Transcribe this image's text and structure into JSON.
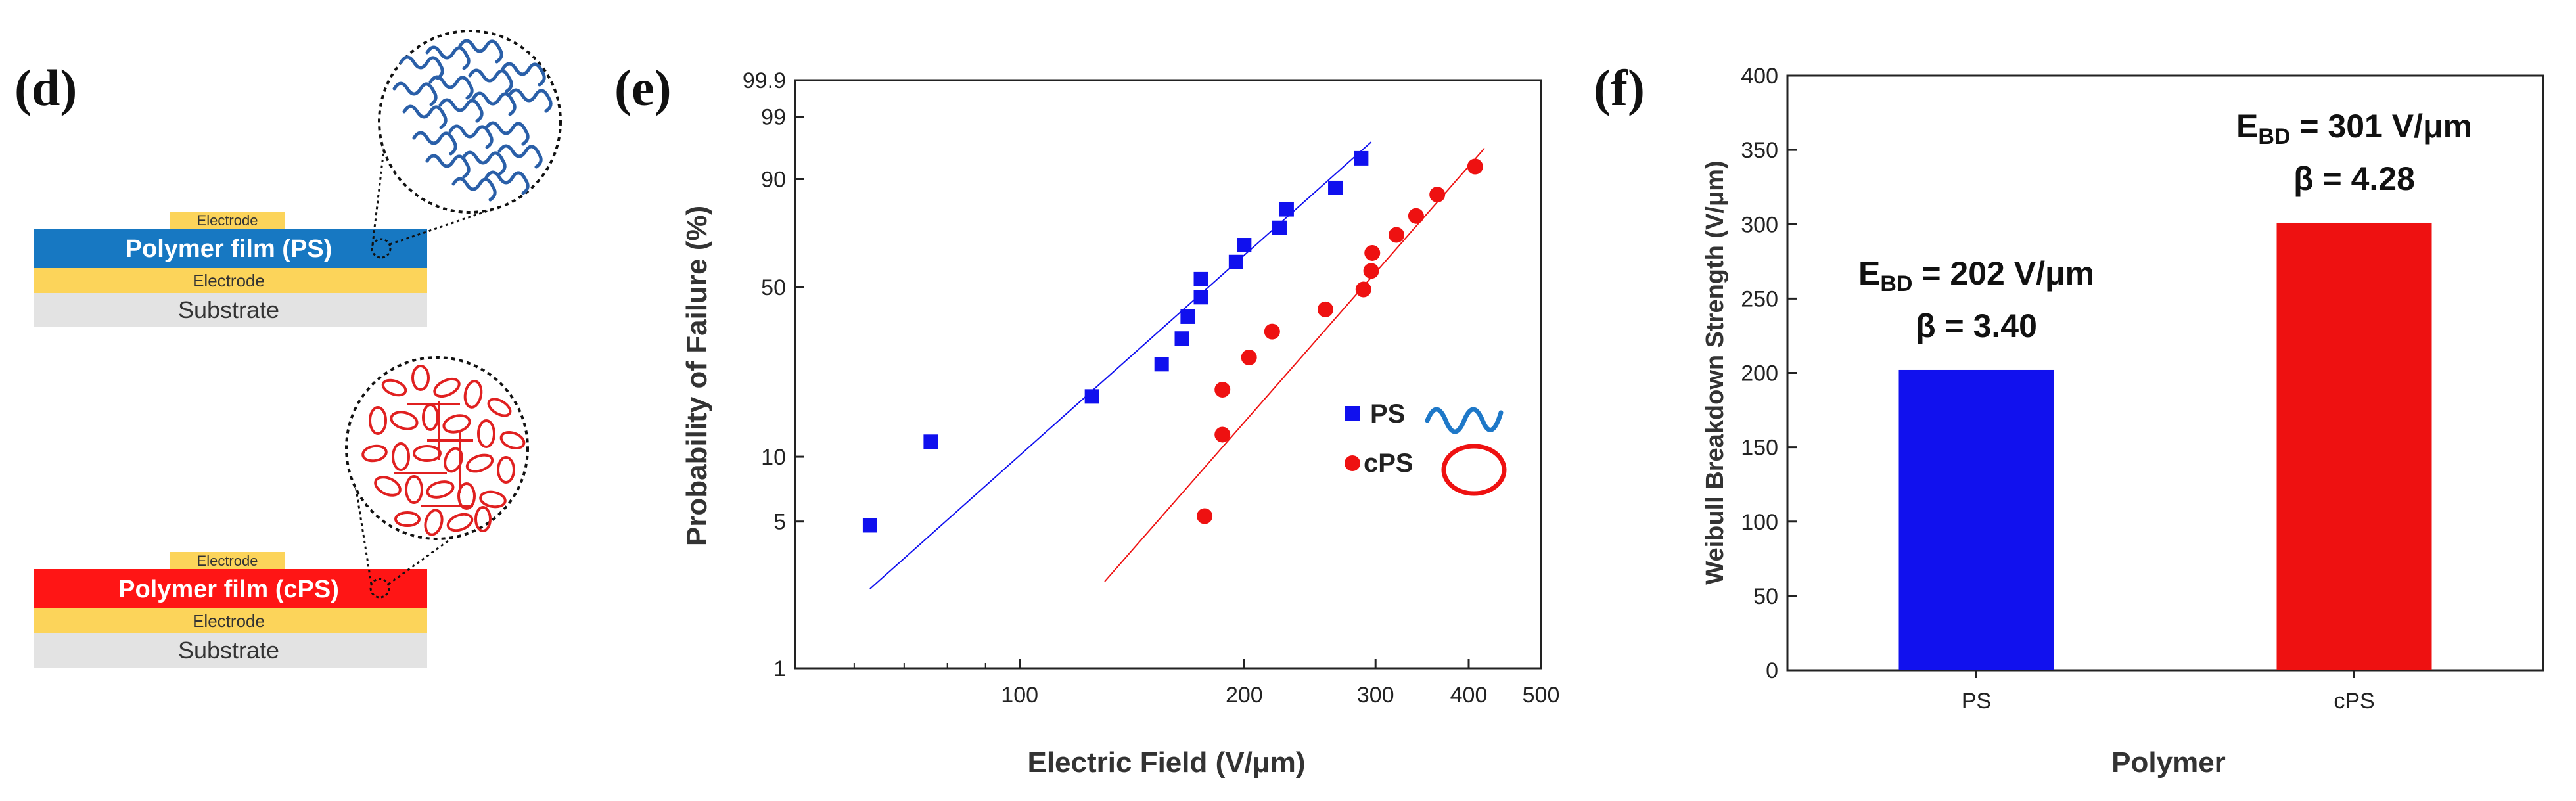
{
  "colors": {
    "blue": "#1010ee",
    "red": "#ee1111",
    "ps_film": "#1778c2",
    "cps_film": "#ff1515",
    "electrode": "#fcd45a",
    "substrate": "#e3e3e3",
    "chain_blue": "#2a5fa8",
    "chain_red": "#e02020"
  },
  "panel_d": {
    "label": "(d)",
    "top_stack": {
      "electrode_top": "Electrode",
      "film": "Polymer film (PS)",
      "electrode_bottom": "Electrode",
      "substrate": "Substrate"
    },
    "bottom_stack": {
      "electrode_top": "Electrode",
      "film": "Polymer film (cPS)",
      "electrode_bottom": "Electrode",
      "substrate": "Substrate"
    }
  },
  "chart_data": [
    {
      "panel": "(e)",
      "type": "scatter",
      "title": "",
      "xlabel": "Electric Field (V/μm)",
      "ylabel": "Probability of Failure (%)",
      "xscale": "log",
      "yscale": "weibull",
      "xlim": [
        50,
        500
      ],
      "ylim": [
        1,
        99.9
      ],
      "xticks": [
        100,
        200,
        300,
        400,
        500
      ],
      "xtick_labels": [
        "100",
        "200",
        "300",
        "400",
        "500"
      ],
      "yticks": [
        1,
        5,
        10,
        50,
        90,
        99,
        99.9
      ],
      "ytick_labels": [
        "1",
        "5",
        "10",
        "50",
        "90",
        "99",
        "99.9"
      ],
      "legend_position": "right",
      "series": [
        {
          "name": "PS",
          "marker": "square",
          "color": "#1010ee",
          "x": [
            63,
            76,
            125,
            155,
            165,
            168,
            175,
            175,
            195,
            200,
            223,
            228,
            265,
            287
          ],
          "y": [
            4.8,
            11.7,
            18.6,
            25.5,
            32.4,
            39.3,
            46.2,
            53.1,
            60,
            66.9,
            73.8,
            80.7,
            87.6,
            94.5
          ],
          "fit": {
            "x": [
              63,
              296
            ],
            "y": [
              2.4,
              96.9
            ]
          }
        },
        {
          "name": "cPS",
          "marker": "circle",
          "color": "#ee1111",
          "x": [
            177,
            187,
            187,
            203,
            218,
            257,
            289,
            296,
            297,
            320,
            340,
            363,
            408
          ],
          "y": [
            5.3,
            12.6,
            19.9,
            27.2,
            34.5,
            41.8,
            49.1,
            56.4,
            63.7,
            71,
            78.3,
            85.6,
            92.9
          ],
          "fit": {
            "x": [
              130,
              420
            ],
            "y": [
              2.6,
              96.1
            ]
          }
        }
      ]
    },
    {
      "panel": "(f)",
      "type": "bar",
      "title": "",
      "categories": [
        "PS",
        "cPS"
      ],
      "values": [
        202,
        301
      ],
      "colors": [
        "#1111ee",
        "#ee1111"
      ],
      "xlabel": "Polymer",
      "ylabel": "Weibull Breakdown Strength (V/μm)",
      "ylim": [
        0,
        400
      ],
      "yticks": [
        0,
        50,
        100,
        150,
        200,
        250,
        300,
        350,
        400
      ],
      "annotations": [
        {
          "ebd_prefix": "E",
          "ebd_sub": "BD",
          "ebd_value": " = 202 V/μm",
          "beta": "β = 3.40"
        },
        {
          "ebd_prefix": "E",
          "ebd_sub": "BD",
          "ebd_value": " = 301 V/μm",
          "beta": "β = 4.28"
        }
      ]
    }
  ]
}
